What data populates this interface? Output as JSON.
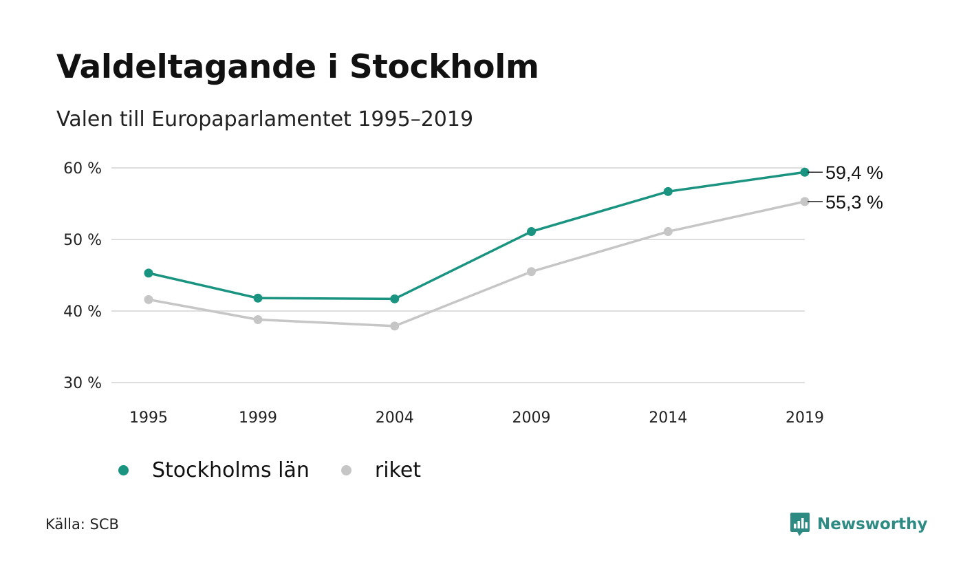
{
  "chart_data": {
    "type": "line",
    "title": "Valdeltagande i Stockholm",
    "subtitle": "Valen till Europaparlamentet 1995–2019",
    "x": [
      "1995",
      "1999",
      "2004",
      "2009",
      "2014",
      "2019"
    ],
    "x_values": [
      1995,
      1999,
      2004,
      2009,
      2014,
      2019
    ],
    "ylim": [
      30,
      60
    ],
    "yticks": [
      30,
      40,
      50,
      60
    ],
    "ytick_labels": [
      "30 %",
      "40 %",
      "50 %",
      "60 %"
    ],
    "grid": "horizontal",
    "legend_position": "bottom-left",
    "series": [
      {
        "name": "Stockholms län",
        "color": "#1a9480",
        "values": [
          45.3,
          41.8,
          41.7,
          51.1,
          56.7,
          59.4
        ],
        "end_label": "59,4 %"
      },
      {
        "name": "riket",
        "color": "#c6c6c6",
        "values": [
          41.6,
          38.8,
          37.9,
          45.5,
          51.1,
          55.3
        ],
        "end_label": "55,3 %"
      }
    ]
  },
  "footer": {
    "source": "Källa: SCB",
    "brand": "Newsworthy",
    "brand_color": "#2e8b84",
    "brand_icon": "newsworthy-logo-icon"
  }
}
